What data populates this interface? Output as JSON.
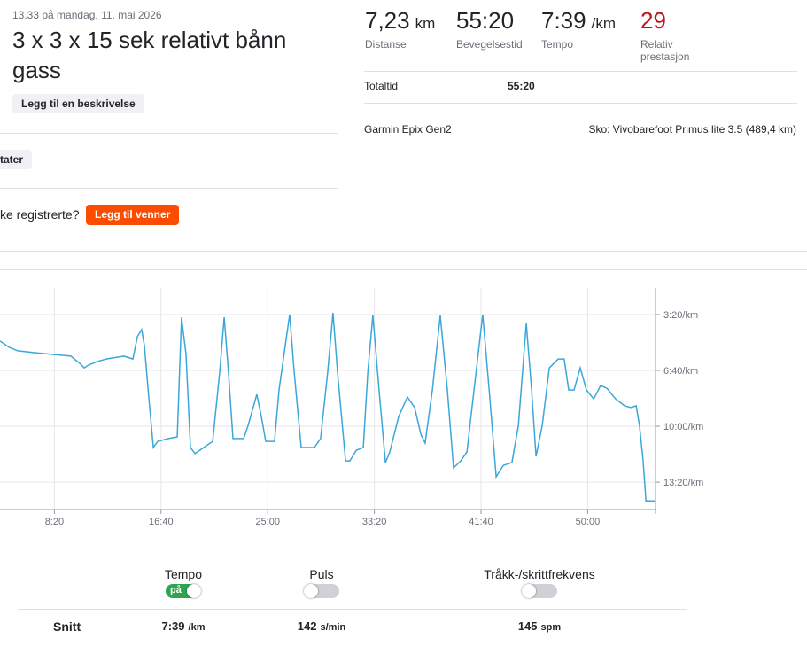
{
  "header": {
    "date": "13.33 på mandag, 11. mai 2026",
    "title": "3 x 3 x 15 sek relativt bånn gass",
    "add_description": "Legg til en beskrivelse",
    "stats_button": "tater",
    "question": "ke registrerte?",
    "add_friends": "Legg til venner"
  },
  "stats": [
    {
      "value": "7,23",
      "unit": "km",
      "label": "Distanse"
    },
    {
      "value": "55:20",
      "label": "Bevegelsestid"
    },
    {
      "value": "7:39",
      "unit": "/km",
      "label": "Tempo"
    },
    {
      "value": "29",
      "label": "Relativ prestasjon"
    }
  ],
  "details": {
    "total_time_label": "Totaltid",
    "total_time": "55:20",
    "device": "Garmin Epix Gen2",
    "shoes": "Sko: Vivobarefoot Primus lite 3.5 (489,4 km)"
  },
  "chart_data": {
    "type": "line",
    "color": "#3ba6d9",
    "grid": true,
    "x": [
      245,
      287,
      328,
      411,
      494,
      577,
      619,
      640,
      660,
      702,
      743,
      826,
      868,
      889,
      909,
      922,
      943,
      964,
      984,
      1034,
      1076,
      1096,
      1117,
      1138,
      1159,
      1200,
      1242,
      1275,
      1296,
      1316,
      1337,
      1387,
      1408,
      1449,
      1470,
      1491,
      1532,
      1553,
      1582,
      1603,
      1624,
      1657,
      1719,
      1748,
      1781,
      1806,
      1827,
      1865,
      1885,
      1915,
      1948,
      1969,
      1993,
      2022,
      2052,
      2072,
      2114,
      2155,
      2189,
      2218,
      2238,
      2272,
      2309,
      2342,
      2371,
      2405,
      2434,
      2467,
      2508,
      2538,
      2571,
      2604,
      2645,
      2675,
      2712,
      2737,
      2758,
      2787,
      2820,
      2861,
      2890,
      2911,
      2936,
      2965,
      2994,
      3028,
      3061,
      3090,
      3131,
      3173,
      3202,
      3227,
      3243,
      3260,
      3273,
      3314
    ],
    "values": [
      295,
      317,
      330,
      337,
      343,
      349,
      375,
      391,
      381,
      368,
      359,
      349,
      359,
      279,
      254,
      311,
      502,
      676,
      654,
      644,
      638,
      210,
      343,
      676,
      698,
      676,
      654,
      406,
      210,
      406,
      644,
      644,
      597,
      486,
      565,
      654,
      654,
      470,
      311,
      200,
      406,
      676,
      676,
      644,
      406,
      194,
      406,
      724,
      724,
      686,
      676,
      406,
      203,
      470,
      730,
      692,
      565,
      495,
      533,
      629,
      660,
      470,
      203,
      470,
      749,
      724,
      692,
      470,
      200,
      470,
      781,
      740,
      730,
      597,
      232,
      470,
      708,
      597,
      391,
      359,
      359,
      470,
      470,
      391,
      470,
      502,
      454,
      464,
      502,
      527,
      533,
      527,
      597,
      724,
      867,
      867
    ],
    "xlim": [
      245,
      3318
    ],
    "ylim": [
      898,
      105
    ],
    "xticks": [
      {
        "value": 500,
        "label": "8:20"
      },
      {
        "value": 1000,
        "label": "16:40"
      },
      {
        "value": 1500,
        "label": "25:00"
      },
      {
        "value": 2000,
        "label": "33:20"
      },
      {
        "value": 2500,
        "label": "41:40"
      },
      {
        "value": 3000,
        "label": "50:00"
      }
    ],
    "yticks": [
      {
        "value": 200,
        "label": "3:20/km"
      },
      {
        "value": 400,
        "label": "6:40/km"
      },
      {
        "value": 600,
        "label": "10:00/km"
      },
      {
        "value": 800,
        "label": "13:20/km"
      }
    ]
  },
  "toggles": [
    {
      "label": "Tempo",
      "on": true,
      "state_label": "på",
      "avg": "7:39",
      "unit": "/km"
    },
    {
      "label": "Puls",
      "on": false,
      "avg": "142",
      "unit": "s/min"
    },
    {
      "label": "Tråkk-/skrittfrekvens",
      "on": false,
      "avg": "145",
      "unit": "spm"
    }
  ],
  "summary_label": "Snitt"
}
